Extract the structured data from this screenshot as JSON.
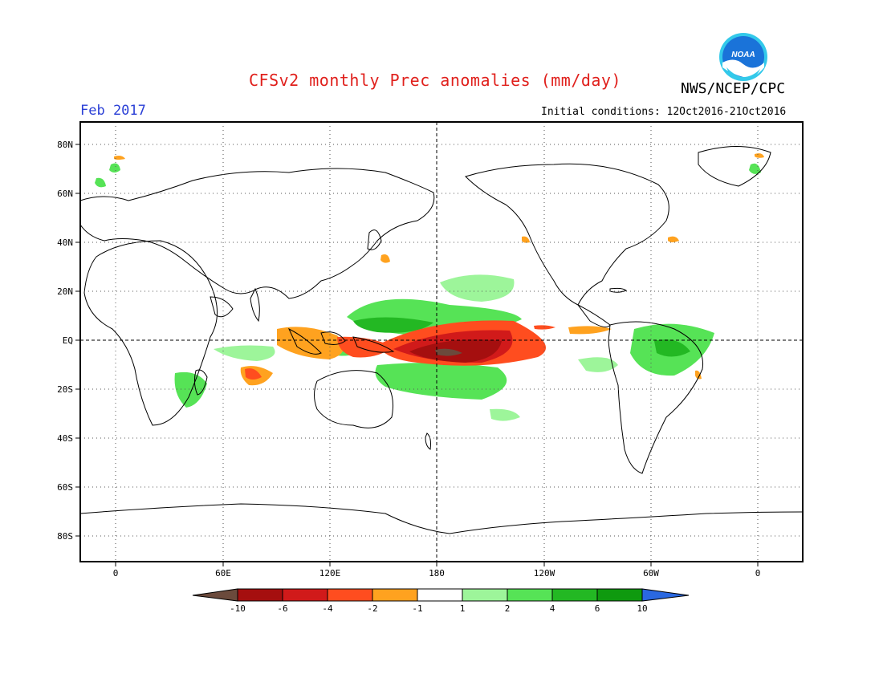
{
  "header": {
    "title": "CFSv2 monthly Prec anomalies (mm/day)",
    "agency": "NWS/NCEP/CPC",
    "logo_text": "NOAA",
    "month": "Feb 2017",
    "initial_conditions": "Initial conditions: 12Oct2016-21Oct2016"
  },
  "map": {
    "lat_labels": [
      "80N",
      "60N",
      "40N",
      "20N",
      "EQ",
      "20S",
      "40S",
      "60S",
      "80S"
    ],
    "lon_labels": [
      "0",
      "60E",
      "120E",
      "180",
      "120W",
      "60W",
      "0"
    ]
  },
  "colorbar": {
    "ticks": [
      "-10",
      "-6",
      "-4",
      "-2",
      "-1",
      "1",
      "2",
      "4",
      "6",
      "10"
    ],
    "colors": [
      "#6b4a3c",
      "#a50f0f",
      "#d11a1a",
      "#ff4d1f",
      "#ffa21f",
      "#ffffff",
      "#9df59a",
      "#56e356",
      "#23b823",
      "#0f9a0f",
      "#2a68e0"
    ]
  },
  "colors": {
    "title": "#e0201c",
    "month": "#2a3fd6",
    "noaa_blue": "#1a73d9",
    "noaa_cyan": "#33c9ea"
  }
}
